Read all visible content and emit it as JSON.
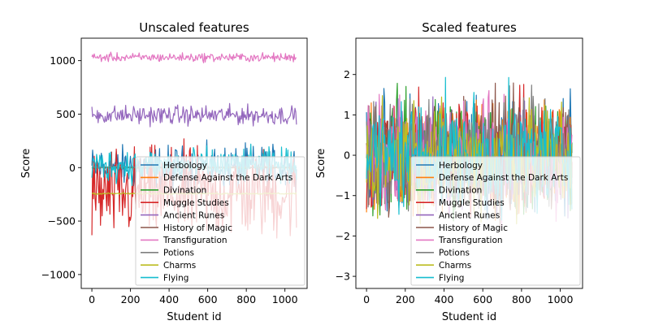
{
  "chart_data": [
    {
      "type": "line",
      "title": "Unscaled features",
      "xlabel": "Student id",
      "ylabel": "Score",
      "xlim": [
        -55,
        1115
      ],
      "ylim": [
        -1130,
        1210
      ],
      "xticks": [
        0,
        200,
        400,
        600,
        800,
        1000
      ],
      "yticks": [
        -1000,
        -500,
        0,
        500,
        1000
      ],
      "legend_position": "lower right",
      "series": [
        {
          "name": "Herbology",
          "color": "#1f77b4",
          "x_range": [
            0,
            1060
          ],
          "center": 0,
          "spread": 290
        },
        {
          "name": "Defense Against the Dark Arts",
          "color": "#ff7f0e",
          "x_range": [
            0,
            1060
          ],
          "center": 0,
          "spread": 8
        },
        {
          "name": "Divination",
          "color": "#2ca02c",
          "x_range": [
            0,
            1060
          ],
          "center": 0,
          "spread": 10
        },
        {
          "name": "Muggle Studies",
          "color": "#d62728",
          "x_range": [
            0,
            1060
          ],
          "center": -250,
          "spread": 620
        },
        {
          "name": "Ancient Runes",
          "color": "#9467bd",
          "x_range": [
            0,
            1060
          ],
          "center": 490,
          "spread": 130
        },
        {
          "name": "History of Magic",
          "color": "#8c564b",
          "x_range": [
            0,
            1060
          ],
          "center": 0,
          "spread": 9
        },
        {
          "name": "Transfiguration",
          "color": "#e377c2",
          "x_range": [
            0,
            1060
          ],
          "center": 1030,
          "spread": 60
        },
        {
          "name": "Potions",
          "color": "#7f7f7f",
          "x_range": [
            0,
            1060
          ],
          "center": 5,
          "spread": 10
        },
        {
          "name": "Charms",
          "color": "#bcbd22",
          "x_range": [
            0,
            1060
          ],
          "center": -243,
          "spread": 12
        },
        {
          "name": "Flying",
          "color": "#17becf",
          "x_range": [
            0,
            1060
          ],
          "center": 20,
          "spread": 230
        }
      ]
    },
    {
      "type": "line",
      "title": "Scaled features",
      "xlabel": "Student id",
      "ylabel": "Score",
      "xlim": [
        -55,
        1115
      ],
      "ylim": [
        -3.3,
        2.9
      ],
      "xticks": [
        0,
        200,
        400,
        600,
        800,
        1000
      ],
      "yticks": [
        -3,
        -2,
        -1,
        0,
        1,
        2
      ],
      "legend_position": "lower right",
      "series": [
        {
          "name": "Herbology",
          "color": "#1f77b4",
          "x_range": [
            0,
            1060
          ],
          "center": 0,
          "spread": 2.0
        },
        {
          "name": "Defense Against the Dark Arts",
          "color": "#ff7f0e",
          "x_range": [
            0,
            1060
          ],
          "center": 0,
          "spread": 2.0
        },
        {
          "name": "Divination",
          "color": "#2ca02c",
          "x_range": [
            0,
            1060
          ],
          "center": 0,
          "spread": 2.2
        },
        {
          "name": "Muggle Studies",
          "color": "#d62728",
          "x_range": [
            0,
            1060
          ],
          "center": 0,
          "spread": 2.0
        },
        {
          "name": "Ancient Runes",
          "color": "#9467bd",
          "x_range": [
            0,
            1060
          ],
          "center": 0,
          "spread": 2.0
        },
        {
          "name": "History of Magic",
          "color": "#8c564b",
          "x_range": [
            0,
            1060
          ],
          "center": 0,
          "spread": 2.0
        },
        {
          "name": "Transfiguration",
          "color": "#e377c2",
          "x_range": [
            0,
            1060
          ],
          "center": 0,
          "spread": 2.0
        },
        {
          "name": "Potions",
          "color": "#7f7f7f",
          "x_range": [
            0,
            1060
          ],
          "center": 0,
          "spread": 2.0
        },
        {
          "name": "Charms",
          "color": "#bcbd22",
          "x_range": [
            0,
            1060
          ],
          "center": 0,
          "spread": 2.0
        },
        {
          "name": "Flying",
          "color": "#17becf",
          "x_range": [
            0,
            1060
          ],
          "center": 0,
          "spread": 2.0
        }
      ]
    }
  ]
}
